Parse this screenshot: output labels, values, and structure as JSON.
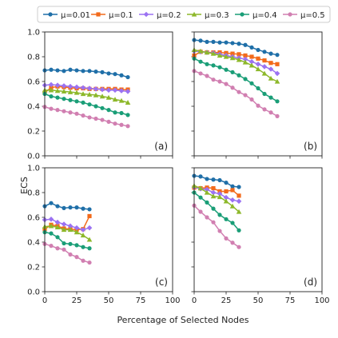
{
  "figure": {
    "ylabel": "ECS",
    "xlabel": "Percentage of Selected Nodes"
  },
  "legend": {
    "items": [
      {
        "label": "μ=0.01",
        "color": "#1f6fa8",
        "marker": "circle"
      },
      {
        "label": "μ=0.1",
        "color": "#f26a1b",
        "marker": "square"
      },
      {
        "label": "μ=0.2",
        "color": "#9b72f2",
        "marker": "diamond"
      },
      {
        "label": "μ=0.3",
        "color": "#8db82a",
        "marker": "triangle"
      },
      {
        "label": "μ=0.4",
        "color": "#1a9e77",
        "marker": "circle"
      },
      {
        "label": "μ=0.5",
        "color": "#d17fb1",
        "marker": "circle"
      }
    ]
  },
  "chart_data": [
    {
      "panel": "(a)",
      "type": "line",
      "xlim": [
        0,
        100
      ],
      "ylim": [
        0.0,
        1.0
      ],
      "xticks": [
        "0",
        "25",
        "50",
        "75",
        "100"
      ],
      "yticks": [
        "0.0",
        "0.2",
        "0.4",
        "0.6",
        "0.8",
        "1.0"
      ],
      "show_xticklabels": false,
      "show_yticklabels": true,
      "x": [
        0,
        5,
        10,
        15,
        20,
        25,
        30,
        35,
        40,
        45,
        50,
        55,
        60,
        65
      ],
      "series": [
        {
          "name": "μ=0.01",
          "values": [
            0.69,
            0.695,
            0.69,
            0.685,
            0.695,
            0.69,
            0.685,
            0.685,
            0.68,
            0.675,
            0.665,
            0.66,
            0.65,
            0.635
          ]
        },
        {
          "name": "μ=0.1",
          "values": [
            0.51,
            0.55,
            0.56,
            0.555,
            0.55,
            0.545,
            0.545,
            0.54,
            0.54,
            0.54,
            0.54,
            0.54,
            0.535,
            0.535
          ]
        },
        {
          "name": "μ=0.2",
          "values": [
            0.57,
            0.575,
            0.57,
            0.565,
            0.56,
            0.555,
            0.55,
            0.545,
            0.54,
            0.535,
            0.53,
            0.53,
            0.525,
            0.52
          ]
        },
        {
          "name": "μ=0.3",
          "values": [
            0.53,
            0.53,
            0.525,
            0.52,
            0.515,
            0.51,
            0.5,
            0.495,
            0.49,
            0.48,
            0.47,
            0.455,
            0.445,
            0.43
          ]
        },
        {
          "name": "μ=0.4",
          "values": [
            0.5,
            0.48,
            0.47,
            0.46,
            0.45,
            0.44,
            0.43,
            0.415,
            0.4,
            0.385,
            0.37,
            0.35,
            0.345,
            0.33
          ]
        },
        {
          "name": "μ=0.5",
          "values": [
            0.395,
            0.38,
            0.37,
            0.36,
            0.35,
            0.34,
            0.325,
            0.31,
            0.3,
            0.29,
            0.275,
            0.26,
            0.25,
            0.24
          ]
        }
      ]
    },
    {
      "panel": "(b)",
      "type": "line",
      "xlim": [
        0,
        100
      ],
      "ylim": [
        0.0,
        1.0
      ],
      "xticks": [
        "0",
        "25",
        "50",
        "75",
        "100"
      ],
      "yticks": [
        "0.0",
        "0.2",
        "0.4",
        "0.6",
        "0.8",
        "1.0"
      ],
      "show_xticklabels": false,
      "show_yticklabels": false,
      "x": [
        0,
        5,
        10,
        15,
        20,
        25,
        30,
        35,
        40,
        45,
        50,
        55,
        60,
        65
      ],
      "series": [
        {
          "name": "μ=0.01",
          "values": [
            0.935,
            0.93,
            0.92,
            0.92,
            0.915,
            0.915,
            0.91,
            0.905,
            0.895,
            0.875,
            0.855,
            0.84,
            0.825,
            0.815
          ]
        },
        {
          "name": "μ=0.1",
          "values": [
            0.81,
            0.84,
            0.835,
            0.835,
            0.835,
            0.83,
            0.825,
            0.82,
            0.81,
            0.8,
            0.785,
            0.77,
            0.75,
            0.74
          ]
        },
        {
          "name": "μ=0.2",
          "values": [
            0.845,
            0.84,
            0.835,
            0.83,
            0.82,
            0.81,
            0.8,
            0.79,
            0.78,
            0.76,
            0.74,
            0.72,
            0.7,
            0.665
          ]
        },
        {
          "name": "μ=0.3",
          "values": [
            0.855,
            0.845,
            0.835,
            0.825,
            0.81,
            0.8,
            0.79,
            0.775,
            0.755,
            0.73,
            0.7,
            0.665,
            0.625,
            0.6
          ]
        },
        {
          "name": "μ=0.4",
          "values": [
            0.785,
            0.76,
            0.74,
            0.73,
            0.715,
            0.695,
            0.675,
            0.65,
            0.62,
            0.585,
            0.545,
            0.5,
            0.47,
            0.44
          ]
        },
        {
          "name": "μ=0.5",
          "values": [
            0.685,
            0.665,
            0.645,
            0.615,
            0.6,
            0.58,
            0.55,
            0.515,
            0.49,
            0.455,
            0.405,
            0.375,
            0.35,
            0.32
          ]
        }
      ]
    },
    {
      "panel": "(c)",
      "type": "line",
      "xlim": [
        0,
        100
      ],
      "ylim": [
        0.0,
        1.0
      ],
      "xticks": [
        "0",
        "25",
        "50",
        "75",
        "100"
      ],
      "yticks": [
        "0.0",
        "0.2",
        "0.4",
        "0.6",
        "0.8",
        "1.0"
      ],
      "show_xticklabels": true,
      "show_yticklabels": true,
      "x": [
        0,
        5,
        10,
        15,
        20,
        25,
        30,
        35
      ],
      "series": [
        {
          "name": "μ=0.01",
          "values": [
            0.69,
            0.715,
            0.69,
            0.675,
            0.68,
            0.68,
            0.67,
            0.665
          ]
        },
        {
          "name": "μ=0.1",
          "values": [
            0.505,
            0.54,
            0.53,
            0.51,
            0.505,
            0.5,
            0.505,
            0.61
          ]
        },
        {
          "name": "μ=0.2",
          "values": [
            0.58,
            0.585,
            0.56,
            0.545,
            0.53,
            0.515,
            0.5,
            0.515
          ]
        },
        {
          "name": "μ=0.3",
          "values": [
            0.525,
            0.53,
            0.52,
            0.5,
            0.5,
            0.48,
            0.455,
            0.42
          ]
        },
        {
          "name": "μ=0.4",
          "values": [
            0.48,
            0.47,
            0.44,
            0.39,
            0.385,
            0.375,
            0.36,
            0.35
          ]
        },
        {
          "name": "μ=0.5",
          "values": [
            0.385,
            0.37,
            0.35,
            0.34,
            0.3,
            0.28,
            0.25,
            0.235
          ]
        }
      ]
    },
    {
      "panel": "(d)",
      "type": "line",
      "xlim": [
        0,
        100
      ],
      "ylim": [
        0.0,
        1.0
      ],
      "xticks": [
        "0",
        "25",
        "50",
        "75",
        "100"
      ],
      "yticks": [
        "0.0",
        "0.2",
        "0.4",
        "0.6",
        "0.8",
        "1.0"
      ],
      "show_xticklabels": true,
      "show_yticklabels": false,
      "x": [
        0,
        5,
        10,
        15,
        20,
        25,
        30,
        35
      ],
      "series": [
        {
          "name": "μ=0.01",
          "values": [
            0.935,
            0.93,
            0.91,
            0.905,
            0.9,
            0.88,
            0.85,
            0.845
          ]
        },
        {
          "name": "μ=0.1",
          "values": [
            0.84,
            0.835,
            0.84,
            0.835,
            0.81,
            0.81,
            0.82,
            0.775
          ]
        },
        {
          "name": "μ=0.2",
          "values": [
            0.845,
            0.83,
            0.825,
            0.8,
            0.79,
            0.76,
            0.74,
            0.73
          ]
        },
        {
          "name": "μ=0.3",
          "values": [
            0.855,
            0.835,
            0.8,
            0.77,
            0.765,
            0.73,
            0.69,
            0.645
          ]
        },
        {
          "name": "μ=0.4",
          "values": [
            0.8,
            0.76,
            0.72,
            0.67,
            0.62,
            0.585,
            0.555,
            0.495
          ]
        },
        {
          "name": "μ=0.5",
          "values": [
            0.695,
            0.645,
            0.6,
            0.56,
            0.49,
            0.43,
            0.395,
            0.36
          ]
        }
      ]
    }
  ]
}
